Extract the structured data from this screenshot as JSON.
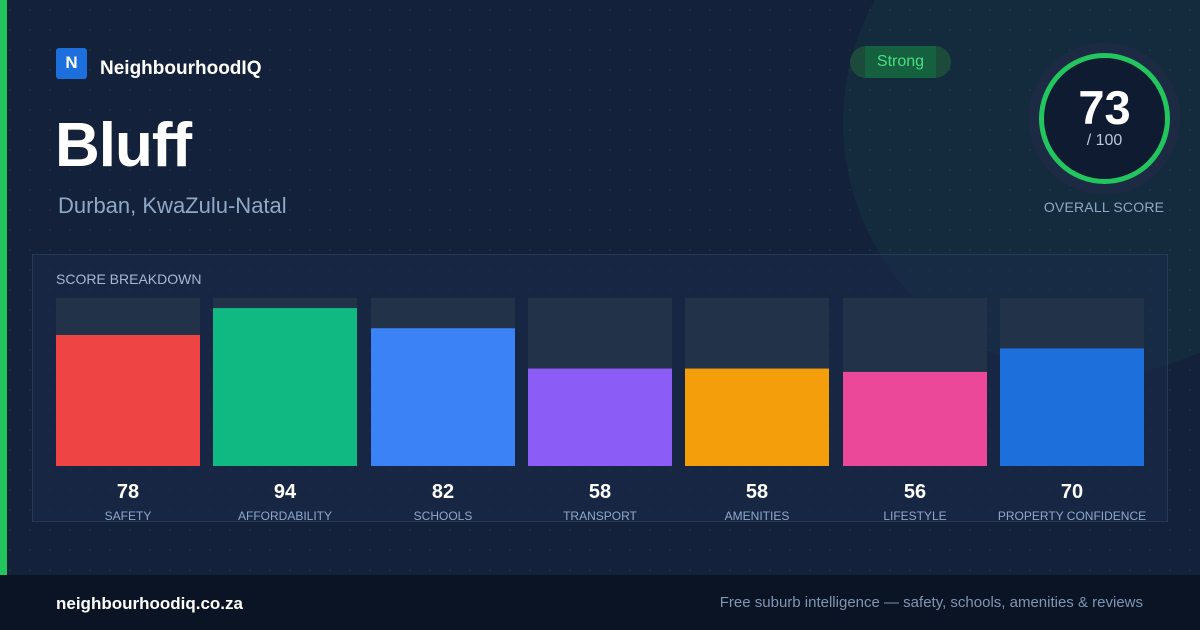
{
  "brand": {
    "logo_letter": "N",
    "name": "NeighbourhoodIQ"
  },
  "suburb": {
    "name": "Bluff",
    "location": "Durban, KwaZulu-Natal"
  },
  "rating": {
    "badge_label": "Strong",
    "score": "73",
    "score_max": "/ 100",
    "score_value": 73,
    "caption": "OVERALL SCORE"
  },
  "breakdown": {
    "title": "SCORE BREAKDOWN"
  },
  "colors": {
    "accent": "#22c55e",
    "track": "#223249",
    "ring_track": "#1c2b43"
  },
  "chart_data": {
    "type": "bar",
    "title": "SCORE BREAKDOWN",
    "categories": [
      "SAFETY",
      "AFFORDABILITY",
      "SCHOOLS",
      "TRANSPORT",
      "AMENITIES",
      "LIFESTYLE",
      "PROPERTY CONFIDENCE"
    ],
    "values": [
      78,
      94,
      82,
      58,
      58,
      56,
      70
    ],
    "colors": [
      "#ef4444",
      "#10b981",
      "#3b82f6",
      "#8b5cf6",
      "#f59e0b",
      "#ec4899",
      "#1d6fdc"
    ],
    "ylim": [
      0,
      100
    ],
    "grid": false,
    "xlabel": "",
    "ylabel": ""
  },
  "footer": {
    "url": "neighbourhoodiq.co.za",
    "tagline": "Free suburb intelligence — safety, schools, amenities & reviews"
  }
}
